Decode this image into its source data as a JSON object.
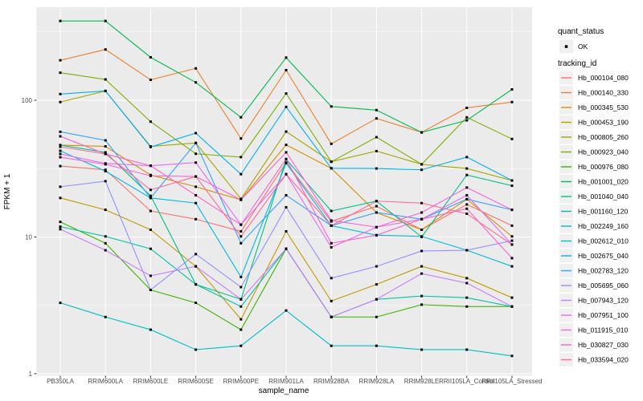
{
  "chart_data": {
    "type": "line",
    "title": "",
    "xlabel": "sample_name",
    "ylabel": "FPKM + 1",
    "y_scale": "log10",
    "ylim": [
      1,
      500
    ],
    "y_ticks": [
      1,
      10,
      100
    ],
    "y_minor_ticks": [
      3.162,
      31.62,
      316.2
    ],
    "grid": "on",
    "legend_position": "right",
    "categories": [
      "PB350LA",
      "RRIM600LA",
      "RRIM600LE",
      "RRIM600SE",
      "RRIM600PE",
      "RRIM901LA",
      "RRIM928BA",
      "RRIM928LA",
      "RRIM928LE",
      "RRII105LA_Control",
      "RRII105LA_Stressed"
    ],
    "series": [
      {
        "name": "Hb_000104_080",
        "color": "#F8766D",
        "values": [
          33,
          31,
          15.5,
          13.5,
          11,
          35,
          13,
          16.8,
          11.3,
          17.3,
          12.1
        ]
      },
      {
        "name": "Hb_000140_330",
        "color": "#EA8331",
        "values": [
          196,
          235,
          141,
          171,
          52.5,
          166,
          48,
          73.6,
          58.2,
          88,
          97
        ]
      },
      {
        "name": "Hb_000345_530",
        "color": "#D89000",
        "values": [
          47,
          46,
          28.4,
          23.3,
          18.7,
          47.2,
          31.8,
          15.1,
          11.3,
          18.9,
          10.1
        ]
      },
      {
        "name": "Hb_000453_190",
        "color": "#C09B00",
        "values": [
          19.3,
          15.8,
          11.3,
          6.1,
          2.5,
          11,
          3.4,
          4.5,
          6.1,
          5,
          3.6
        ]
      },
      {
        "name": "Hb_000805_260",
        "color": "#A3A500",
        "values": [
          97,
          117,
          46,
          48.7,
          19,
          59,
          35.5,
          42.5,
          34,
          31.7,
          25.9
        ]
      },
      {
        "name": "Hb_000923_040",
        "color": "#7CAE00",
        "values": [
          159,
          142,
          69.7,
          40.6,
          38.4,
          112,
          35.5,
          53.7,
          34,
          75,
          52.1
        ]
      },
      {
        "name": "Hb_000976_080",
        "color": "#39B600",
        "values": [
          12.9,
          9,
          4.1,
          3.3,
          2.1,
          8.2,
          2.6,
          2.6,
          3.2,
          3.1,
          3.1
        ]
      },
      {
        "name": "Hb_001001_020",
        "color": "#00BB4E",
        "values": [
          380,
          380,
          206,
          135,
          75,
          205,
          90,
          84.7,
          58.2,
          71.3,
          120
        ]
      },
      {
        "name": "Hb_001040_040",
        "color": "#00C087",
        "values": [
          47,
          41.6,
          20,
          4.5,
          3.5,
          37,
          15.5,
          18.3,
          10,
          28.4,
          23.7
        ]
      },
      {
        "name": "Hb_001160_120",
        "color": "#00C1A3",
        "values": [
          11.9,
          10.1,
          8.2,
          4.5,
          3.1,
          8.2,
          2.6,
          3.5,
          3.7,
          3.6,
          3.1
        ]
      },
      {
        "name": "Hb_002249_160",
        "color": "#00BFC4",
        "values": [
          3.3,
          2.6,
          2.1,
          1.5,
          1.6,
          2.9,
          1.6,
          1.6,
          1.5,
          1.5,
          1.35
        ]
      },
      {
        "name": "Hb_002612_010",
        "color": "#00BAE0",
        "values": [
          42.7,
          30.3,
          19.3,
          17.7,
          5.1,
          34.7,
          12.1,
          10.3,
          10.1,
          8,
          6.1
        ]
      },
      {
        "name": "Hb_002675_040",
        "color": "#00B0F6",
        "values": [
          111,
          117,
          45.5,
          57.5,
          28.8,
          89.4,
          31.8,
          31.7,
          31,
          38.4,
          25.9
        ]
      },
      {
        "name": "Hb_002783_120",
        "color": "#35A2FF",
        "values": [
          58.8,
          50.9,
          19.3,
          48.7,
          9,
          20.2,
          12.1,
          15.1,
          13.5,
          18.9,
          15.8
        ]
      },
      {
        "name": "Hb_005695_060",
        "color": "#9590FF",
        "values": [
          23.3,
          25.6,
          4.1,
          7.5,
          4.3,
          16.5,
          5,
          6.1,
          7.9,
          8,
          9.4
        ]
      },
      {
        "name": "Hb_007943_120",
        "color": "#C77CFF",
        "values": [
          11.4,
          8,
          5.2,
          6.1,
          3.5,
          8.2,
          2.6,
          3.5,
          5.4,
          4.6,
          3.1
        ]
      },
      {
        "name": "Hb_007951_100",
        "color": "#E76BF3",
        "values": [
          40.5,
          34.5,
          33.2,
          35,
          12.3,
          28.8,
          8.4,
          11.8,
          13.5,
          20.2,
          8.8
        ]
      },
      {
        "name": "Hb_011915_010",
        "color": "#FA62DB",
        "values": [
          38.3,
          34,
          28,
          27.7,
          18.7,
          41.6,
          13.2,
          11.8,
          15.1,
          23,
          15.8
        ]
      },
      {
        "name": "Hb_030827_030",
        "color": "#FF61CC",
        "values": [
          54.5,
          40.5,
          33.2,
          20.2,
          12.3,
          37.2,
          9,
          10.3,
          13.5,
          16.1,
          7
        ]
      },
      {
        "name": "Hb_033594_020",
        "color": "#FF6A98",
        "values": [
          45.7,
          40.5,
          22.1,
          27.7,
          10.1,
          28.8,
          12.1,
          18.3,
          17.7,
          14.8,
          8.8
        ]
      }
    ],
    "legend": {
      "quant_status": {
        "title": "quant_status",
        "items": [
          {
            "label": "OK",
            "marker": "point",
            "color": "#000000"
          }
        ]
      },
      "tracking_id": {
        "title": "tracking_id"
      }
    },
    "colors": {
      "panel": "#EBEBEB",
      "grid_major": "#FFFFFF",
      "grid_minor": "#FFFFFF",
      "point": "#000000",
      "tick_text": "#4D4D4D",
      "tick_mark": "#333333",
      "legend_key_bg": "#F0F0F0"
    }
  }
}
